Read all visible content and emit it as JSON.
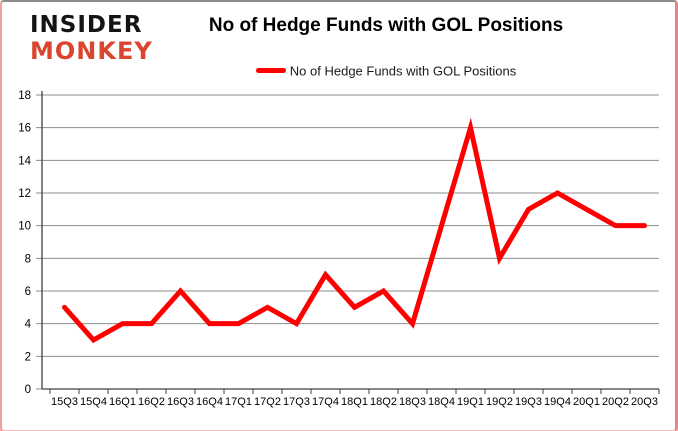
{
  "logo": {
    "line1": "INSIDER",
    "line2": "MONKEY"
  },
  "header": {
    "title": "No of Hedge Funds with GOL Positions"
  },
  "legend": {
    "label": "No of Hedge Funds with GOL Positions",
    "swatch_color": "#ff0000"
  },
  "chart_data": {
    "type": "line",
    "title": "No of Hedge Funds with GOL Positions",
    "categories": [
      "15Q3",
      "15Q4",
      "16Q1",
      "16Q2",
      "16Q3",
      "16Q4",
      "17Q1",
      "17Q2",
      "17Q3",
      "17Q4",
      "18Q1",
      "18Q2",
      "18Q3",
      "18Q4",
      "19Q1",
      "19Q2",
      "19Q3",
      "19Q4",
      "20Q1",
      "20Q2",
      "20Q3"
    ],
    "series": [
      {
        "name": "No of Hedge Funds with GOL Positions",
        "color": "#ff0000",
        "values": [
          5,
          3,
          4,
          4,
          6,
          4,
          4,
          5,
          4,
          7,
          5,
          6,
          4,
          10,
          16,
          8,
          11,
          12,
          11,
          10,
          10
        ]
      }
    ],
    "xlabel": "",
    "ylabel": "",
    "ylim": [
      0,
      18
    ],
    "ytick_step": 2,
    "grid": true,
    "legend_position": "top",
    "grid_color": "#8c8c8c",
    "axis_color": "#404040"
  }
}
